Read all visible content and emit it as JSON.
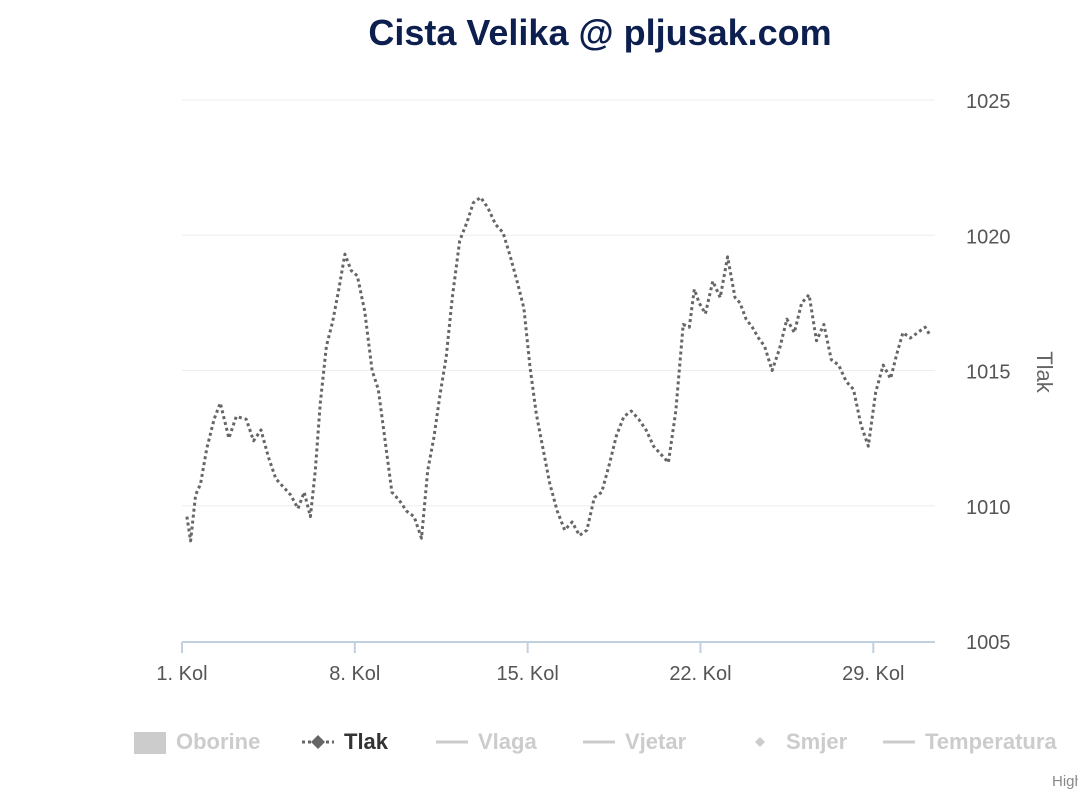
{
  "title": "Cista Velika @ pljusak.com",
  "credit": "Highcharts.com",
  "legend": {
    "items": [
      {
        "label": "Oborine",
        "state": "hidden",
        "symbol": "rect"
      },
      {
        "label": "Tlak",
        "state": "active",
        "symbol": "dotted-diamond"
      },
      {
        "label": "Vlaga",
        "state": "hidden",
        "symbol": "line"
      },
      {
        "label": "Vjetar",
        "state": "hidden",
        "symbol": "line"
      },
      {
        "label": "Smjer",
        "state": "hidden",
        "symbol": "diamond"
      },
      {
        "label": "Temperatura",
        "state": "hidden",
        "symbol": "line"
      }
    ]
  },
  "colors": {
    "series": "#666666",
    "title": "#0d1f4f",
    "grid": "#eeeeee",
    "axis": "#c0d0e0",
    "hidden": "#cccccc"
  },
  "chart_data": {
    "type": "line",
    "title": "Cista Velika @ pljusak.com",
    "ylabel": "Tlak",
    "xlabel": "",
    "x_tick_labels": [
      "1. Kol",
      "8. Kol",
      "15. Kol",
      "22. Kol",
      "29. Kol"
    ],
    "x_ticks_day": [
      1,
      8,
      15,
      22,
      29
    ],
    "x_range_day": [
      1,
      31.5
    ],
    "y_ticks": [
      1005,
      1010,
      1015,
      1020,
      1025
    ],
    "ylim": [
      1005,
      1025
    ],
    "grid": true,
    "y_axis_side": "right",
    "series": [
      {
        "name": "Tlak",
        "style": "dotted",
        "x_day": [
          1.2,
          1.35,
          1.55,
          1.75,
          2.0,
          2.3,
          2.55,
          2.9,
          3.2,
          3.6,
          3.9,
          4.2,
          4.5,
          4.8,
          5.1,
          5.4,
          5.7,
          5.95,
          6.2,
          6.4,
          6.6,
          6.85,
          7.1,
          7.35,
          7.6,
          7.85,
          8.1,
          8.4,
          8.7,
          8.95,
          9.2,
          9.5,
          9.8,
          10.1,
          10.4,
          10.7,
          10.95,
          11.2,
          11.45,
          11.7,
          11.95,
          12.25,
          12.55,
          12.8,
          13.1,
          13.4,
          13.7,
          14.0,
          14.3,
          14.6,
          14.85,
          15.1,
          15.35,
          15.6,
          15.9,
          16.2,
          16.5,
          16.8,
          17.1,
          17.4,
          17.7,
          18.0,
          18.3,
          18.6,
          18.9,
          19.2,
          19.5,
          19.8,
          20.1,
          20.4,
          20.7,
          21.0,
          21.3,
          21.55,
          21.75,
          21.95,
          22.2,
          22.5,
          22.8,
          23.1,
          23.4,
          23.6,
          23.85,
          24.1,
          24.35,
          24.6,
          24.9,
          25.2,
          25.5,
          25.8,
          26.1,
          26.4,
          26.7,
          27.0,
          27.3,
          27.6,
          27.9,
          28.2,
          28.5,
          28.8,
          29.1,
          29.4,
          29.7,
          29.95,
          30.2,
          30.5,
          30.8,
          31.1,
          31.3
        ],
        "values": [
          1009.6,
          1008.7,
          1010.4,
          1010.8,
          1012.1,
          1013.2,
          1013.8,
          1012.5,
          1013.3,
          1013.2,
          1012.4,
          1012.8,
          1011.8,
          1011.0,
          1010.7,
          1010.4,
          1009.9,
          1010.5,
          1009.6,
          1011.3,
          1013.8,
          1015.9,
          1016.8,
          1018.0,
          1019.3,
          1018.7,
          1018.5,
          1017.2,
          1015.0,
          1014.3,
          1012.6,
          1010.5,
          1010.2,
          1009.8,
          1009.6,
          1008.8,
          1011.3,
          1012.5,
          1014.1,
          1015.5,
          1017.7,
          1019.8,
          1020.5,
          1021.2,
          1021.4,
          1021.0,
          1020.4,
          1020.1,
          1019.2,
          1018.2,
          1017.3,
          1015.1,
          1013.4,
          1012.2,
          1010.8,
          1009.8,
          1009.1,
          1009.4,
          1008.9,
          1009.1,
          1010.3,
          1010.5,
          1011.5,
          1012.6,
          1013.3,
          1013.5,
          1013.2,
          1012.8,
          1012.2,
          1011.9,
          1011.6,
          1013.5,
          1016.7,
          1016.6,
          1018.0,
          1017.5,
          1017.1,
          1018.3,
          1017.7,
          1019.2,
          1017.7,
          1017.5,
          1016.9,
          1016.6,
          1016.2,
          1015.9,
          1015.0,
          1015.8,
          1016.9,
          1016.4,
          1017.5,
          1017.8,
          1016.1,
          1016.7,
          1015.4,
          1015.2,
          1014.6,
          1014.3,
          1013.0,
          1012.2,
          1014.2,
          1015.2,
          1014.7,
          1015.6,
          1016.4,
          1016.2,
          1016.4,
          1016.6,
          1016.3
        ]
      }
    ]
  }
}
